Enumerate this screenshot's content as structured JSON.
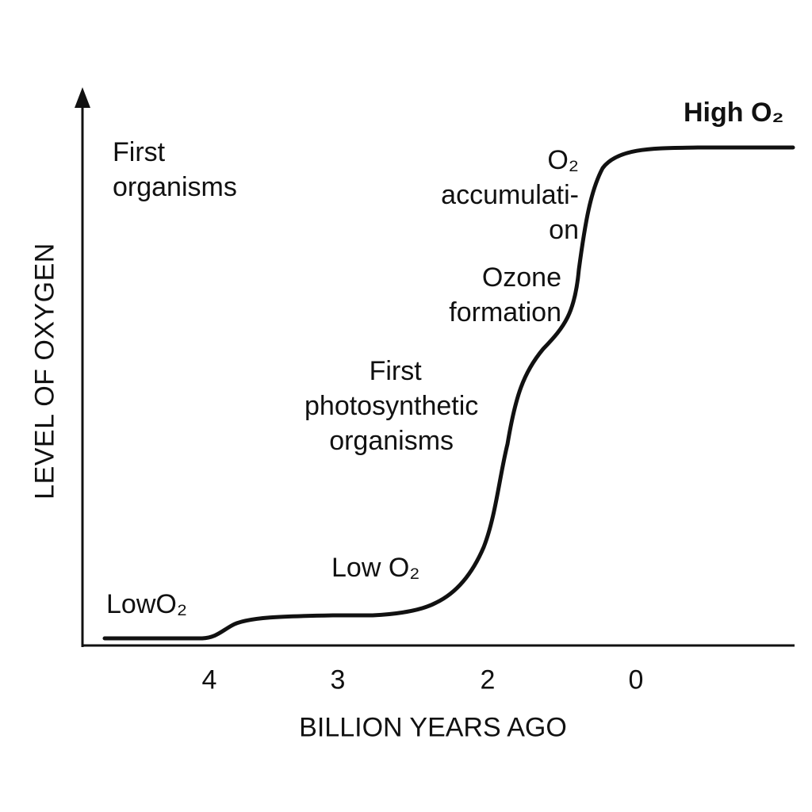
{
  "chart_data": {
    "type": "line",
    "xlabel": "BILLION YEARS AGO",
    "ylabel": "LEVEL OF OXYGEN",
    "x_ticks": [
      "4",
      "3",
      "2",
      "0"
    ],
    "x_reversed": true,
    "grid": false,
    "line_color": "#111111",
    "annotations": {
      "first_organisms": [
        "First",
        "organisms"
      ],
      "low_o2_left": "LowO₂",
      "low_o2_mid": "Low O₂",
      "first_photosynthetic": [
        "First",
        "photosynthetic",
        "organisms"
      ],
      "ozone_formation": [
        "Ozone",
        "formation"
      ],
      "o2_accumulation": [
        "O₂",
        "accumulati-",
        "on"
      ],
      "high_o2": "High O₂"
    }
  }
}
